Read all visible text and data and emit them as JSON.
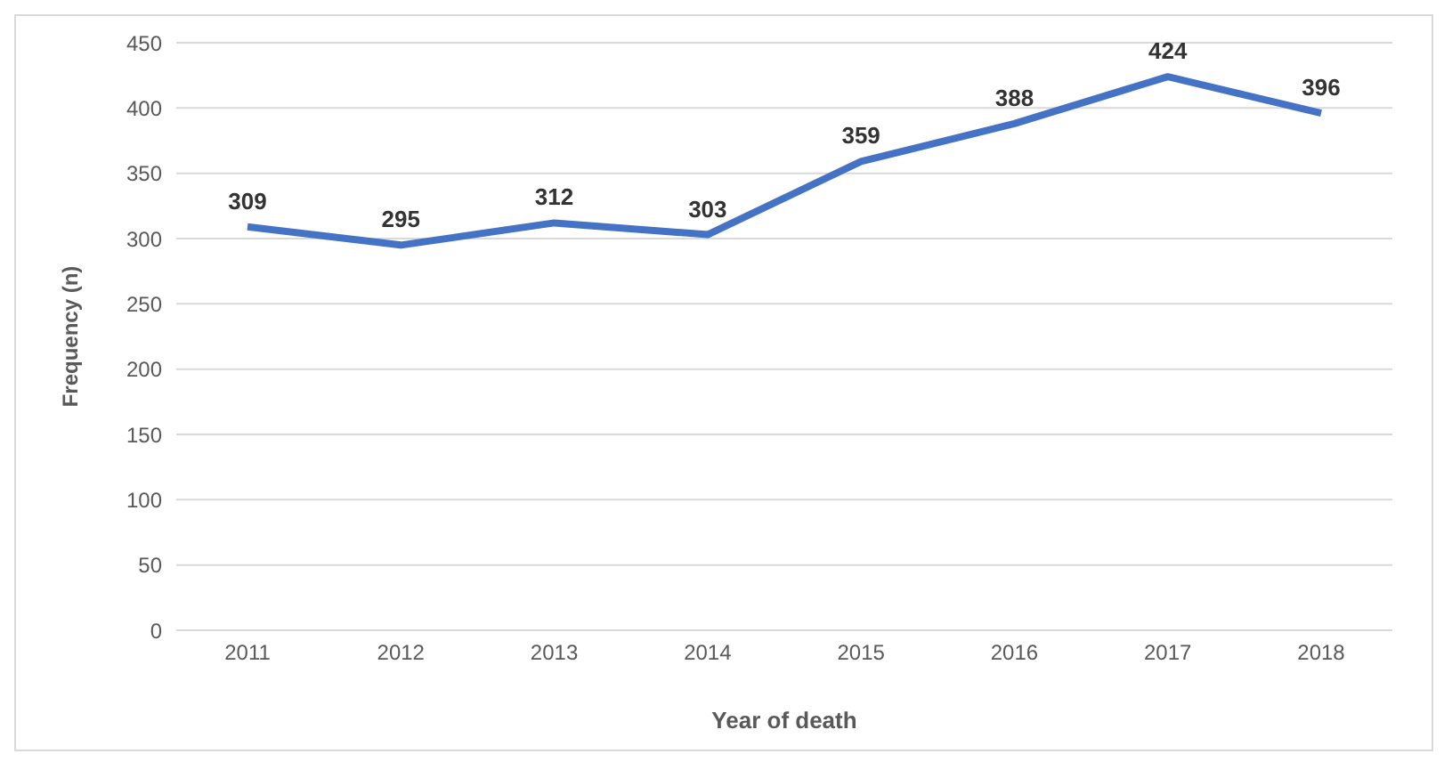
{
  "chart_data": {
    "type": "line",
    "xlabel": "Year of death",
    "ylabel": "Frequency (n)",
    "categories": [
      "2011",
      "2012",
      "2013",
      "2014",
      "2015",
      "2016",
      "2017",
      "2018"
    ],
    "series": [
      {
        "color": "#4472c4",
        "values": [
          309,
          295,
          312,
          303,
          359,
          388,
          424,
          396
        ]
      }
    ],
    "ylim": [
      0,
      450
    ],
    "yticks": [
      0,
      50,
      100,
      150,
      200,
      250,
      300,
      350,
      400,
      450
    ],
    "grid": "y",
    "legend": false,
    "marker": "none",
    "line_style": "solid",
    "data_labels": true
  }
}
